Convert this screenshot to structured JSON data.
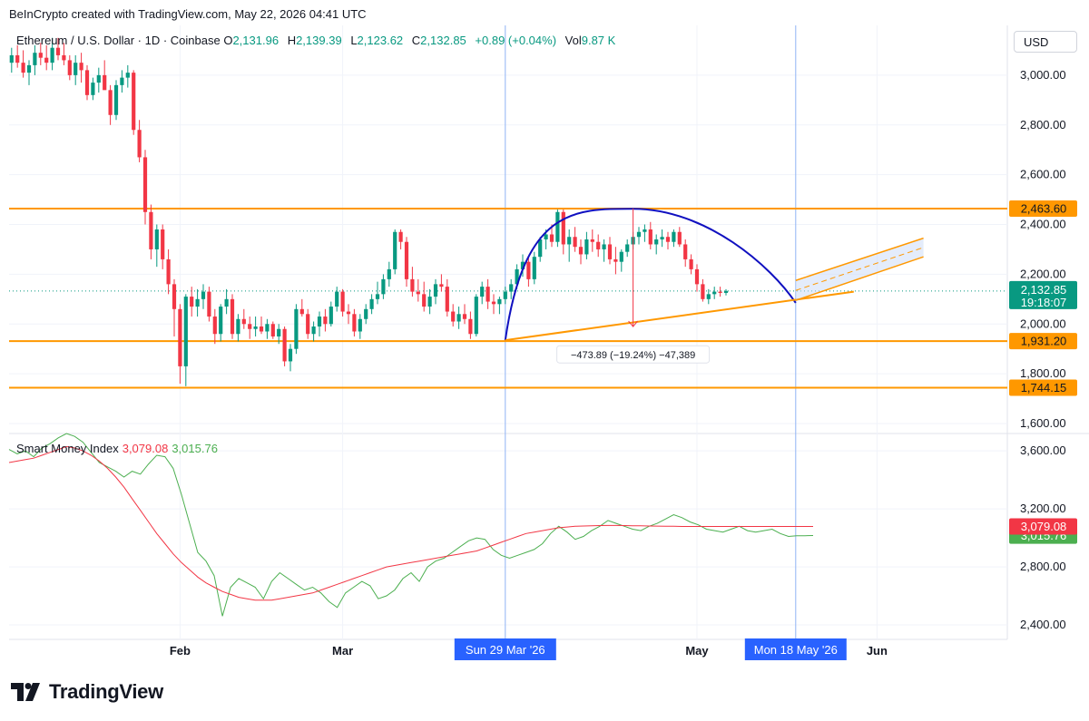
{
  "header": {
    "text": "BeInCrypto created with TradingView.com, May 22, 2026 04:41 UTC"
  },
  "legend": {
    "symbol": "Ethereum / U.S. Dollar · 1D · Coinbase",
    "open_label": "O",
    "open": "2,131.96",
    "high_label": "H",
    "high": "2,139.39",
    "low_label": "L",
    "low": "2,123.62",
    "close_label": "C",
    "close": "2,132.85",
    "change": "+0.89 (+0.04%)",
    "vol_label": "Vol",
    "vol": "9.87 K"
  },
  "currency_button": "USD",
  "smi_legend": {
    "name": "Smart Money Index",
    "value1": "3,079.08",
    "value2": "3,015.76"
  },
  "measure_label": "−473.89 (−19.24%) −47,389",
  "footer": {
    "brand": "TradingView"
  },
  "colors": {
    "up": "#089981",
    "down": "#f23645",
    "level": "#ff9800",
    "arc": "#1010c0",
    "axis_highlight": "#2962ff"
  },
  "chart_data": {
    "type": "candlestick",
    "title": "Ethereum / U.S. Dollar · 1D · Coinbase",
    "price_axis": {
      "ylim": [
        1560,
        3200
      ],
      "ticks": [
        "1,600.00",
        "1,800.00",
        "2,000.00",
        "2,200.00",
        "2,400.00",
        "2,600.00",
        "2,800.00",
        "3,000.00"
      ]
    },
    "x_labels": [
      {
        "date": "2026-02-01",
        "label": "Feb"
      },
      {
        "date": "2026-03-01",
        "label": "Mar"
      },
      {
        "date": "2026-05-01",
        "label": "May"
      },
      {
        "date": "2026-06-01",
        "label": "Jun"
      }
    ],
    "highlighted_dates": [
      {
        "date": "2026-03-29",
        "label": "Sun 29 Mar '26"
      },
      {
        "date": "2026-05-18",
        "label": "Mon 18 May '26"
      }
    ],
    "horizontal_levels": [
      {
        "value": 2463.6,
        "label": "2,463.60"
      },
      {
        "value": 1931.2,
        "label": "1,931.20"
      },
      {
        "value": 1744.15,
        "label": "1,744.15"
      }
    ],
    "current_price": {
      "value": 2132.85,
      "label": "2,132.85",
      "countdown": "19:18:07"
    },
    "rounding_top_arc": {
      "start_date": "2026-03-29",
      "start_value": 1935,
      "peak_date": "2026-04-20",
      "peak_value": 2463,
      "end_date": "2026-05-18",
      "end_value": 2085
    },
    "support_trendline": {
      "start_date": "2026-03-29",
      "start_value": 1935,
      "end_date": "2026-05-28",
      "end_value": 2130
    },
    "measure": {
      "date": "2026-04-20",
      "from": 2463.6,
      "to": 1989.7,
      "label": "−473.89 (−19.24%) −47,389"
    },
    "projection_channel": {
      "start_date": "2026-05-18",
      "end_date": "2026-06-09",
      "upper": [
        2175,
        2345
      ],
      "lower": [
        2095,
        2270
      ]
    },
    "candles_ohlc": [
      [
        3050,
        3110,
        3010,
        3080
      ],
      [
        3080,
        3120,
        3030,
        3050
      ],
      [
        3050,
        3100,
        2990,
        3010
      ],
      [
        3010,
        3060,
        2960,
        3040
      ],
      [
        3040,
        3120,
        3000,
        3090
      ],
      [
        3090,
        3130,
        3040,
        3070
      ],
      [
        3070,
        3120,
        3020,
        3050
      ],
      [
        3050,
        3150,
        3020,
        3110
      ],
      [
        3110,
        3150,
        3060,
        3080
      ],
      [
        3080,
        3130,
        3040,
        3060
      ],
      [
        3060,
        3080,
        2980,
        3000
      ],
      [
        3000,
        3080,
        2960,
        3050
      ],
      [
        3050,
        3090,
        2970,
        3020
      ],
      [
        3020,
        3040,
        2900,
        2920
      ],
      [
        2920,
        2990,
        2900,
        2970
      ],
      [
        2970,
        3030,
        2930,
        3000
      ],
      [
        3000,
        3060,
        2960,
        2940
      ],
      [
        2940,
        2960,
        2800,
        2840
      ],
      [
        2840,
        2980,
        2820,
        2960
      ],
      [
        2960,
        3020,
        2930,
        2990
      ],
      [
        2990,
        3040,
        2950,
        3010
      ],
      [
        3010,
        3020,
        2760,
        2780
      ],
      [
        2780,
        2820,
        2650,
        2670
      ],
      [
        2670,
        2700,
        2400,
        2450
      ],
      [
        2450,
        2480,
        2260,
        2300
      ],
      [
        2300,
        2400,
        2230,
        2380
      ],
      [
        2380,
        2400,
        2220,
        2260
      ],
      [
        2260,
        2300,
        2120,
        2160
      ],
      [
        2160,
        2180,
        1950,
        2060
      ],
      [
        2060,
        2080,
        1760,
        1830
      ],
      [
        1830,
        2120,
        1750,
        2110
      ],
      [
        2110,
        2150,
        2030,
        2070
      ],
      [
        2070,
        2140,
        2030,
        2100
      ],
      [
        2100,
        2160,
        2060,
        2130
      ],
      [
        2130,
        2150,
        2010,
        2030
      ],
      [
        2030,
        2060,
        1920,
        1960
      ],
      [
        1960,
        2080,
        1930,
        2070
      ],
      [
        2070,
        2140,
        2040,
        2100
      ],
      [
        2100,
        2120,
        1940,
        1960
      ],
      [
        1960,
        2040,
        1930,
        2020
      ],
      [
        2020,
        2060,
        1980,
        2000
      ],
      [
        2000,
        2030,
        1940,
        1980
      ],
      [
        1980,
        2030,
        1950,
        1990
      ],
      [
        1990,
        2030,
        1960,
        1970
      ],
      [
        1970,
        2020,
        1940,
        2000
      ],
      [
        2000,
        2010,
        1940,
        1950
      ],
      [
        1950,
        2000,
        1920,
        1980
      ],
      [
        1980,
        1990,
        1830,
        1850
      ],
      [
        1850,
        1920,
        1810,
        1900
      ],
      [
        1900,
        2080,
        1880,
        2060
      ],
      [
        2060,
        2100,
        2030,
        2040
      ],
      [
        2040,
        2060,
        1940,
        1960
      ],
      [
        1960,
        2010,
        1930,
        1990
      ],
      [
        1990,
        2050,
        1950,
        2030
      ],
      [
        2030,
        2060,
        1970,
        2000
      ],
      [
        2000,
        2090,
        1990,
        2070
      ],
      [
        2070,
        2150,
        2050,
        2130
      ],
      [
        2130,
        2140,
        2030,
        2050
      ],
      [
        2050,
        2080,
        2000,
        2040
      ],
      [
        2040,
        2060,
        1950,
        1970
      ],
      [
        1970,
        2040,
        1940,
        2020
      ],
      [
        2020,
        2080,
        2000,
        2060
      ],
      [
        2060,
        2120,
        2040,
        2100
      ],
      [
        2100,
        2170,
        2080,
        2120
      ],
      [
        2120,
        2200,
        2100,
        2180
      ],
      [
        2180,
        2250,
        2150,
        2220
      ],
      [
        2220,
        2380,
        2200,
        2370
      ],
      [
        2370,
        2380,
        2300,
        2330
      ],
      [
        2330,
        2350,
        2150,
        2180
      ],
      [
        2180,
        2230,
        2110,
        2130
      ],
      [
        2130,
        2180,
        2090,
        2120
      ],
      [
        2120,
        2170,
        2050,
        2070
      ],
      [
        2070,
        2140,
        2040,
        2110
      ],
      [
        2110,
        2180,
        2080,
        2160
      ],
      [
        2160,
        2200,
        2130,
        2150
      ],
      [
        2150,
        2180,
        2030,
        2050
      ],
      [
        2050,
        2080,
        1990,
        2010
      ],
      [
        2010,
        2070,
        1980,
        2040
      ],
      [
        2040,
        2080,
        2000,
        2020
      ],
      [
        2020,
        2050,
        1940,
        1960
      ],
      [
        1960,
        2120,
        1950,
        2110
      ],
      [
        2110,
        2170,
        2080,
        2150
      ],
      [
        2150,
        2180,
        2060,
        2090
      ],
      [
        2090,
        2120,
        2040,
        2080
      ],
      [
        2080,
        2110,
        2040,
        2100
      ],
      [
        2100,
        2150,
        2080,
        2130
      ],
      [
        2130,
        2180,
        2100,
        2160
      ],
      [
        2160,
        2240,
        2140,
        2220
      ],
      [
        2220,
        2280,
        2190,
        2250
      ],
      [
        2250,
        2270,
        2150,
        2180
      ],
      [
        2180,
        2290,
        2160,
        2270
      ],
      [
        2270,
        2350,
        2250,
        2340
      ],
      [
        2340,
        2380,
        2300,
        2360
      ],
      [
        2360,
        2400,
        2310,
        2330
      ],
      [
        2330,
        2460,
        2310,
        2450
      ],
      [
        2450,
        2460,
        2280,
        2320
      ],
      [
        2320,
        2380,
        2250,
        2350
      ],
      [
        2350,
        2390,
        2290,
        2310
      ],
      [
        2310,
        2340,
        2240,
        2280
      ],
      [
        2280,
        2370,
        2260,
        2340
      ],
      [
        2340,
        2380,
        2290,
        2330
      ],
      [
        2330,
        2360,
        2270,
        2300
      ],
      [
        2300,
        2340,
        2250,
        2320
      ],
      [
        2320,
        2350,
        2240,
        2260
      ],
      [
        2260,
        2310,
        2200,
        2250
      ],
      [
        2250,
        2300,
        2210,
        2290
      ],
      [
        2290,
        2340,
        2270,
        2320
      ],
      [
        2320,
        2370,
        2300,
        2350
      ],
      [
        2350,
        2390,
        2320,
        2370
      ],
      [
        2370,
        2400,
        2330,
        2380
      ],
      [
        2380,
        2410,
        2300,
        2320
      ],
      [
        2320,
        2360,
        2280,
        2340
      ],
      [
        2340,
        2380,
        2310,
        2350
      ],
      [
        2350,
        2370,
        2300,
        2330
      ],
      [
        2330,
        2380,
        2310,
        2370
      ],
      [
        2370,
        2390,
        2310,
        2320
      ],
      [
        2320,
        2340,
        2230,
        2260
      ],
      [
        2260,
        2280,
        2200,
        2220
      ],
      [
        2220,
        2240,
        2130,
        2160
      ],
      [
        2160,
        2180,
        2090,
        2100
      ],
      [
        2100,
        2140,
        2080,
        2120
      ],
      [
        2120,
        2150,
        2100,
        2130
      ],
      [
        2130,
        2150,
        2110,
        2125
      ],
      [
        2125,
        2140,
        2115,
        2133
      ]
    ],
    "smi_axis": {
      "ylim": [
        2300,
        3720
      ],
      "ticks": [
        "2,400.00",
        "2,800.00",
        "3,200.00",
        "3,600.00"
      ]
    },
    "series": [
      {
        "name": "Smart Money Index",
        "value": "3,015.76",
        "color": "#4caf50",
        "values": [
          3610,
          3580,
          3600,
          3560,
          3620,
          3650,
          3690,
          3720,
          3700,
          3660,
          3590,
          3520,
          3490,
          3460,
          3420,
          3460,
          3440,
          3510,
          3570,
          3560,
          3480,
          3300,
          3100,
          2900,
          2840,
          2740,
          2460,
          2660,
          2720,
          2690,
          2660,
          2580,
          2700,
          2760,
          2720,
          2680,
          2640,
          2660,
          2620,
          2560,
          2520,
          2620,
          2660,
          2700,
          2670,
          2580,
          2600,
          2640,
          2720,
          2760,
          2700,
          2800,
          2840,
          2860,
          2900,
          2940,
          2980,
          3000,
          2990,
          2920,
          2880,
          2860,
          2880,
          2900,
          2920,
          2960,
          3030,
          3080,
          3040,
          2990,
          3010,
          3050,
          3080,
          3120,
          3100,
          3080,
          3060,
          3050,
          3080,
          3100,
          3130,
          3160,
          3140,
          3110,
          3090,
          3060,
          3050,
          3040,
          3060,
          3080,
          3050,
          3040,
          3050,
          3060,
          3030,
          3010,
          3015,
          3015,
          3016
        ],
        "note": ""
      },
      {
        "name": "",
        "value": "3,079.08",
        "color": "#f23645",
        "values": [
          3520,
          3530,
          3540,
          3550,
          3570,
          3590,
          3610,
          3630,
          3620,
          3600,
          3570,
          3530,
          3480,
          3420,
          3350,
          3270,
          3190,
          3110,
          3030,
          2960,
          2890,
          2830,
          2780,
          2730,
          2690,
          2660,
          2630,
          2610,
          2590,
          2580,
          2570,
          2570,
          2570,
          2580,
          2590,
          2600,
          2610,
          2620,
          2640,
          2660,
          2680,
          2700,
          2720,
          2740,
          2760,
          2780,
          2800,
          2810,
          2820,
          2830,
          2840,
          2850,
          2860,
          2870,
          2880,
          2890,
          2900,
          2910,
          2930,
          2950,
          2970,
          2990,
          3010,
          3030,
          3040,
          3050,
          3060,
          3070,
          3075,
          3080,
          3082,
          3084,
          3085,
          3086,
          3086,
          3085,
          3084,
          3083,
          3082,
          3081,
          3080,
          3080,
          3079,
          3079,
          3079,
          3079,
          3079,
          3079,
          3079,
          3079,
          3079,
          3079,
          3079,
          3079,
          3079,
          3079,
          3079,
          3079,
          3079
        ]
      }
    ]
  }
}
